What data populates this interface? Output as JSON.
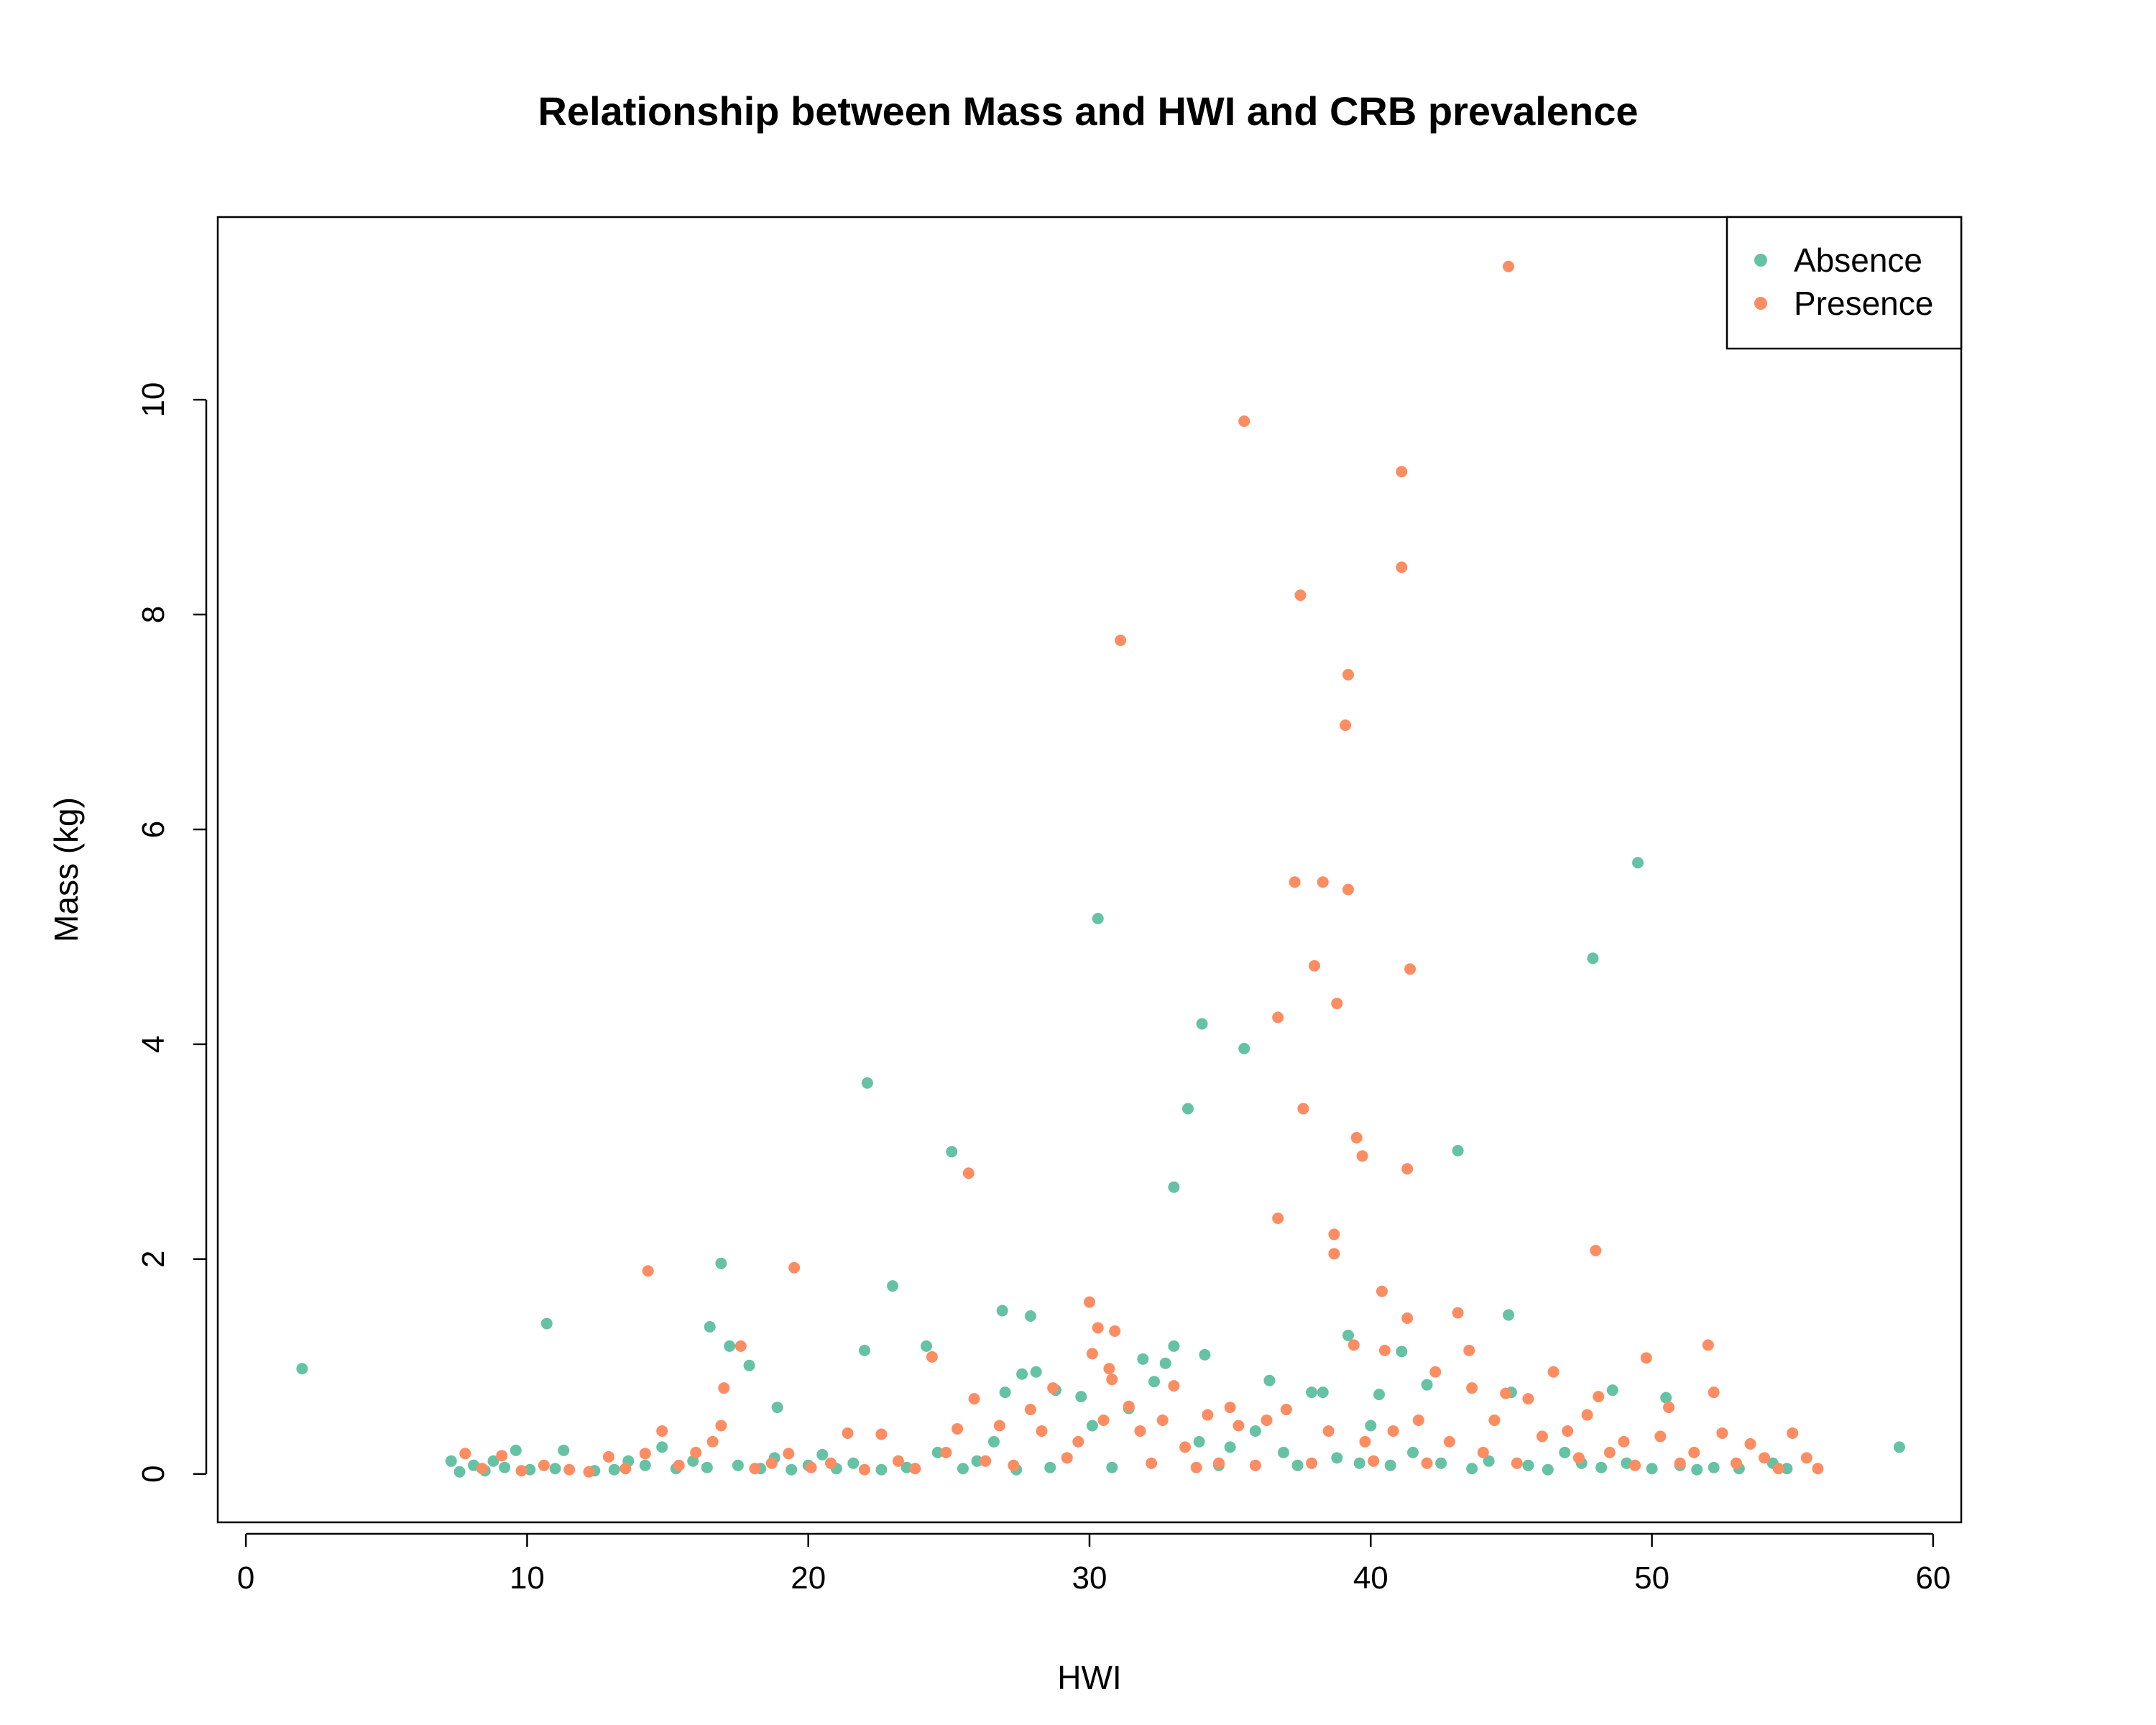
{
  "chart_data": {
    "type": "scatter",
    "title": "Relationship between Mass and HWI and CRB prevalence",
    "xlabel": "HWI",
    "ylabel": "Mass (kg)",
    "xlim": [
      -1,
      61
    ],
    "ylim": [
      -0.45,
      11.7
    ],
    "xticks": [
      0,
      10,
      20,
      30,
      40,
      50,
      60
    ],
    "yticks": [
      0,
      2,
      4,
      6,
      8,
      10
    ],
    "grid": false,
    "legend_position": "top-right",
    "series": [
      {
        "name": "Absence",
        "color": "#66C2A5",
        "points": [
          [
            2.0,
            0.98
          ],
          [
            7.3,
            0.12
          ],
          [
            7.6,
            0.02
          ],
          [
            8.1,
            0.08
          ],
          [
            8.5,
            0.03
          ],
          [
            8.8,
            0.12
          ],
          [
            9.2,
            0.06
          ],
          [
            9.6,
            0.22
          ],
          [
            10.1,
            0.04
          ],
          [
            10.7,
            1.4
          ],
          [
            11.0,
            0.05
          ],
          [
            11.3,
            0.22
          ],
          [
            12.4,
            0.03
          ],
          [
            13.1,
            0.04
          ],
          [
            13.6,
            0.12
          ],
          [
            14.2,
            0.08
          ],
          [
            14.8,
            0.25
          ],
          [
            15.3,
            0.05
          ],
          [
            15.9,
            0.12
          ],
          [
            16.4,
            0.06
          ],
          [
            16.5,
            1.37
          ],
          [
            16.9,
            1.96
          ],
          [
            17.2,
            1.19
          ],
          [
            17.5,
            0.08
          ],
          [
            17.9,
            1.01
          ],
          [
            18.3,
            0.05
          ],
          [
            18.8,
            0.15
          ],
          [
            18.9,
            0.62
          ],
          [
            19.4,
            0.04
          ],
          [
            20.0,
            0.08
          ],
          [
            20.5,
            0.18
          ],
          [
            21.0,
            0.05
          ],
          [
            21.6,
            0.1
          ],
          [
            22.0,
            1.15
          ],
          [
            22.1,
            3.64
          ],
          [
            22.6,
            0.04
          ],
          [
            23.0,
            1.75
          ],
          [
            23.5,
            0.06
          ],
          [
            24.2,
            1.19
          ],
          [
            24.6,
            0.2
          ],
          [
            25.1,
            3.0
          ],
          [
            25.5,
            0.05
          ],
          [
            26.0,
            0.12
          ],
          [
            26.6,
            0.3
          ],
          [
            26.9,
            1.52
          ],
          [
            27.0,
            0.76
          ],
          [
            27.4,
            0.04
          ],
          [
            27.6,
            0.93
          ],
          [
            27.9,
            1.47
          ],
          [
            28.1,
            0.95
          ],
          [
            28.6,
            0.06
          ],
          [
            28.8,
            0.78
          ],
          [
            29.2,
            0.15
          ],
          [
            29.7,
            0.72
          ],
          [
            30.1,
            0.45
          ],
          [
            30.3,
            5.17
          ],
          [
            30.8,
            0.06
          ],
          [
            31.4,
            0.61
          ],
          [
            31.9,
            1.07
          ],
          [
            32.3,
            0.86
          ],
          [
            32.7,
            1.03
          ],
          [
            33.0,
            2.67
          ],
          [
            33.0,
            1.19
          ],
          [
            33.5,
            3.4
          ],
          [
            33.9,
            0.3
          ],
          [
            34.0,
            4.19
          ],
          [
            34.1,
            1.11
          ],
          [
            34.6,
            0.08
          ],
          [
            35.0,
            0.25
          ],
          [
            35.5,
            3.96
          ],
          [
            35.9,
            0.4
          ],
          [
            36.4,
            0.87
          ],
          [
            36.9,
            0.2
          ],
          [
            37.4,
            0.08
          ],
          [
            37.9,
            0.76
          ],
          [
            38.3,
            0.76
          ],
          [
            38.8,
            0.15
          ],
          [
            39.2,
            1.29
          ],
          [
            39.6,
            0.1
          ],
          [
            40.0,
            0.45
          ],
          [
            40.3,
            0.74
          ],
          [
            40.7,
            0.08
          ],
          [
            41.1,
            1.14
          ],
          [
            41.5,
            0.2
          ],
          [
            42.0,
            0.83
          ],
          [
            42.5,
            0.1
          ],
          [
            43.1,
            3.01
          ],
          [
            43.6,
            0.05
          ],
          [
            44.2,
            0.12
          ],
          [
            44.9,
            1.48
          ],
          [
            45.0,
            0.76
          ],
          [
            45.6,
            0.08
          ],
          [
            46.3,
            0.04
          ],
          [
            46.9,
            0.2
          ],
          [
            47.5,
            0.1
          ],
          [
            47.9,
            4.8
          ],
          [
            48.2,
            0.06
          ],
          [
            48.6,
            0.78
          ],
          [
            49.1,
            0.1
          ],
          [
            49.5,
            5.69
          ],
          [
            50.0,
            0.05
          ],
          [
            50.5,
            0.71
          ],
          [
            51.0,
            0.08
          ],
          [
            51.6,
            0.04
          ],
          [
            52.2,
            0.06
          ],
          [
            53.1,
            0.05
          ],
          [
            54.3,
            0.1
          ],
          [
            54.8,
            0.05
          ],
          [
            58.8,
            0.25
          ]
        ]
      },
      {
        "name": "Presence",
        "color": "#FC8D62",
        "points": [
          [
            7.8,
            0.19
          ],
          [
            8.4,
            0.05
          ],
          [
            9.1,
            0.17
          ],
          [
            9.8,
            0.03
          ],
          [
            10.6,
            0.08
          ],
          [
            11.5,
            0.04
          ],
          [
            12.2,
            0.02
          ],
          [
            12.9,
            0.16
          ],
          [
            13.5,
            0.05
          ],
          [
            14.2,
            0.19
          ],
          [
            14.3,
            1.89
          ],
          [
            14.8,
            0.4
          ],
          [
            15.4,
            0.08
          ],
          [
            16.0,
            0.2
          ],
          [
            16.6,
            0.3
          ],
          [
            16.9,
            0.45
          ],
          [
            17.0,
            0.8
          ],
          [
            17.6,
            1.19
          ],
          [
            18.1,
            0.05
          ],
          [
            18.7,
            0.1
          ],
          [
            19.3,
            0.19
          ],
          [
            19.5,
            1.92
          ],
          [
            20.1,
            0.06
          ],
          [
            20.8,
            0.1
          ],
          [
            21.4,
            0.38
          ],
          [
            22.0,
            0.04
          ],
          [
            22.6,
            0.37
          ],
          [
            23.2,
            0.12
          ],
          [
            23.8,
            0.05
          ],
          [
            24.4,
            1.09
          ],
          [
            24.9,
            0.2
          ],
          [
            25.3,
            0.42
          ],
          [
            25.7,
            2.8
          ],
          [
            25.9,
            0.7
          ],
          [
            26.3,
            0.12
          ],
          [
            26.8,
            0.45
          ],
          [
            27.3,
            0.08
          ],
          [
            27.9,
            0.6
          ],
          [
            28.3,
            0.4
          ],
          [
            28.7,
            0.8
          ],
          [
            29.2,
            0.15
          ],
          [
            29.6,
            0.3
          ],
          [
            30.0,
            1.6
          ],
          [
            30.1,
            1.12
          ],
          [
            30.3,
            1.36
          ],
          [
            30.5,
            0.5
          ],
          [
            30.7,
            0.98
          ],
          [
            30.8,
            0.88
          ],
          [
            30.9,
            1.33
          ],
          [
            31.1,
            7.76
          ],
          [
            31.4,
            0.63
          ],
          [
            31.8,
            0.4
          ],
          [
            32.2,
            0.1
          ],
          [
            32.6,
            0.5
          ],
          [
            33.0,
            0.82
          ],
          [
            33.4,
            0.25
          ],
          [
            33.8,
            0.06
          ],
          [
            34.2,
            0.55
          ],
          [
            34.6,
            0.1
          ],
          [
            35.0,
            0.62
          ],
          [
            35.3,
            0.45
          ],
          [
            35.5,
            9.8
          ],
          [
            35.9,
            0.08
          ],
          [
            36.3,
            0.5
          ],
          [
            36.7,
            2.38
          ],
          [
            36.7,
            4.25
          ],
          [
            37.0,
            0.6
          ],
          [
            37.3,
            5.51
          ],
          [
            37.5,
            8.18
          ],
          [
            37.6,
            3.4
          ],
          [
            37.9,
            0.1
          ],
          [
            38.0,
            4.73
          ],
          [
            38.3,
            5.51
          ],
          [
            38.5,
            0.4
          ],
          [
            38.7,
            2.23
          ],
          [
            38.7,
            2.05
          ],
          [
            38.8,
            4.38
          ],
          [
            39.1,
            6.97
          ],
          [
            39.2,
            7.44
          ],
          [
            39.2,
            5.44
          ],
          [
            39.4,
            1.2
          ],
          [
            39.5,
            3.13
          ],
          [
            39.7,
            2.96
          ],
          [
            39.8,
            0.3
          ],
          [
            40.1,
            0.12
          ],
          [
            40.4,
            1.7
          ],
          [
            40.5,
            1.15
          ],
          [
            40.8,
            0.4
          ],
          [
            41.1,
            9.33
          ],
          [
            41.1,
            8.44
          ],
          [
            41.3,
            2.84
          ],
          [
            41.3,
            1.45
          ],
          [
            41.4,
            4.7
          ],
          [
            41.7,
            0.5
          ],
          [
            42.0,
            0.1
          ],
          [
            42.3,
            0.95
          ],
          [
            42.8,
            0.3
          ],
          [
            43.1,
            1.5
          ],
          [
            43.5,
            1.15
          ],
          [
            43.6,
            0.8
          ],
          [
            44.0,
            0.2
          ],
          [
            44.4,
            0.5
          ],
          [
            44.8,
            0.75
          ],
          [
            44.9,
            11.24
          ],
          [
            45.2,
            0.1
          ],
          [
            45.6,
            0.7
          ],
          [
            46.1,
            0.35
          ],
          [
            46.5,
            0.95
          ],
          [
            47.0,
            0.4
          ],
          [
            47.4,
            0.15
          ],
          [
            47.7,
            0.55
          ],
          [
            48.0,
            2.08
          ],
          [
            48.1,
            0.72
          ],
          [
            48.5,
            0.2
          ],
          [
            49.0,
            0.3
          ],
          [
            49.4,
            0.08
          ],
          [
            49.8,
            1.08
          ],
          [
            50.3,
            0.35
          ],
          [
            50.6,
            0.62
          ],
          [
            51.0,
            0.1
          ],
          [
            51.5,
            0.2
          ],
          [
            52.0,
            1.2
          ],
          [
            52.2,
            0.76
          ],
          [
            52.5,
            0.38
          ],
          [
            53.0,
            0.1
          ],
          [
            53.5,
            0.28
          ],
          [
            54.0,
            0.15
          ],
          [
            54.5,
            0.05
          ],
          [
            55.0,
            0.38
          ],
          [
            55.5,
            0.15
          ],
          [
            55.9,
            0.05
          ]
        ]
      }
    ]
  }
}
